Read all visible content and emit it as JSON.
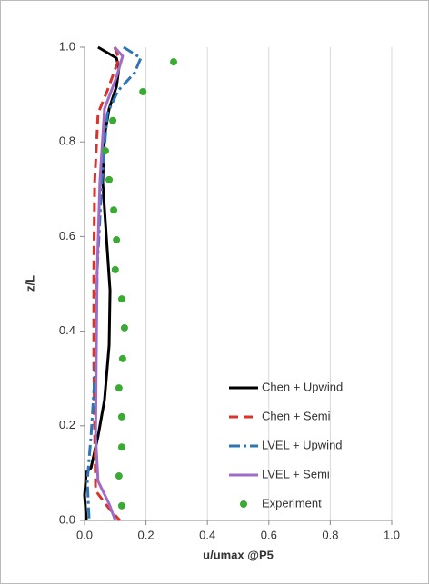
{
  "chart_data": {
    "type": "line",
    "xlabel": "u/umax @P5",
    "ylabel": "z/L",
    "xlim": [
      0,
      1
    ],
    "ylim": [
      0,
      1
    ],
    "xticks": [
      {
        "value": 0,
        "label": "0.0"
      },
      {
        "value": 0.2,
        "label": "0.2"
      },
      {
        "value": 0.4,
        "label": "0.4"
      },
      {
        "value": 0.6,
        "label": "0.6"
      },
      {
        "value": 0.8,
        "label": "0.8"
      },
      {
        "value": 1,
        "label": "1.0"
      }
    ],
    "yticks": [
      {
        "value": 0,
        "label": "0.0"
      },
      {
        "value": 0.2,
        "label": "0.2"
      },
      {
        "value": 0.4,
        "label": "0.4"
      },
      {
        "value": 0.6,
        "label": "0.6"
      },
      {
        "value": 0.8,
        "label": "0.8"
      },
      {
        "value": 1,
        "label": "1.0"
      }
    ],
    "grid": "x",
    "legend": "lower right",
    "series": [
      {
        "name": "Chen + Upwind",
        "color": "#000000",
        "style": "solid",
        "x": [
          0.044,
          0.104,
          0.112,
          0.104,
          0.08,
          0.065,
          0.059,
          0.071,
          0.083,
          0.08,
          0.065,
          0.044,
          0.021,
          0.006,
          0.0,
          0.006
        ],
        "y": [
          1.0,
          0.977,
          0.956,
          0.917,
          0.87,
          0.812,
          0.716,
          0.6,
          0.486,
          0.37,
          0.255,
          0.178,
          0.111,
          0.102,
          0.054,
          0.0
        ]
      },
      {
        "name": "Chen + Semi",
        "color": "#d9342b",
        "style": "dash",
        "x": [
          0.098,
          0.112,
          0.074,
          0.044,
          0.033,
          0.03,
          0.03,
          0.033,
          0.036,
          0.08,
          0.115
        ],
        "y": [
          1.0,
          0.975,
          0.908,
          0.86,
          0.716,
          0.524,
          0.332,
          0.178,
          0.063,
          0.025,
          0.0
        ]
      },
      {
        "name": "LVEL + Upwind",
        "color": "#2e75b6",
        "style": "dashdot",
        "x": [
          0.127,
          0.183,
          0.163,
          0.109,
          0.074,
          0.056,
          0.041,
          0.036,
          0.021,
          0.009,
          0.015
        ],
        "y": [
          1.0,
          0.977,
          0.946,
          0.908,
          0.86,
          0.716,
          0.524,
          0.332,
          0.178,
          0.083,
          0.0
        ]
      },
      {
        "name": "LVEL + Semi",
        "color": "#9e6bc7",
        "style": "solid",
        "x": [
          0.098,
          0.124,
          0.104,
          0.065,
          0.05,
          0.041,
          0.038,
          0.036,
          0.044,
          0.08,
          0.1
        ],
        "y": [
          1.0,
          0.981,
          0.937,
          0.87,
          0.716,
          0.524,
          0.332,
          0.178,
          0.083,
          0.035,
          0.0
        ]
      },
      {
        "name": "Experiment",
        "color": "#3aaa35",
        "style": "markers",
        "x": [
          0.29,
          0.19,
          0.092,
          0.068,
          0.08,
          0.095,
          0.104,
          0.1,
          0.121,
          0.13,
          0.124,
          0.112,
          0.121,
          0.121,
          0.112,
          0.121
        ],
        "y": [
          0.969,
          0.906,
          0.845,
          0.781,
          0.72,
          0.656,
          0.593,
          0.53,
          0.468,
          0.407,
          0.342,
          0.28,
          0.219,
          0.155,
          0.094,
          0.031
        ]
      }
    ]
  }
}
